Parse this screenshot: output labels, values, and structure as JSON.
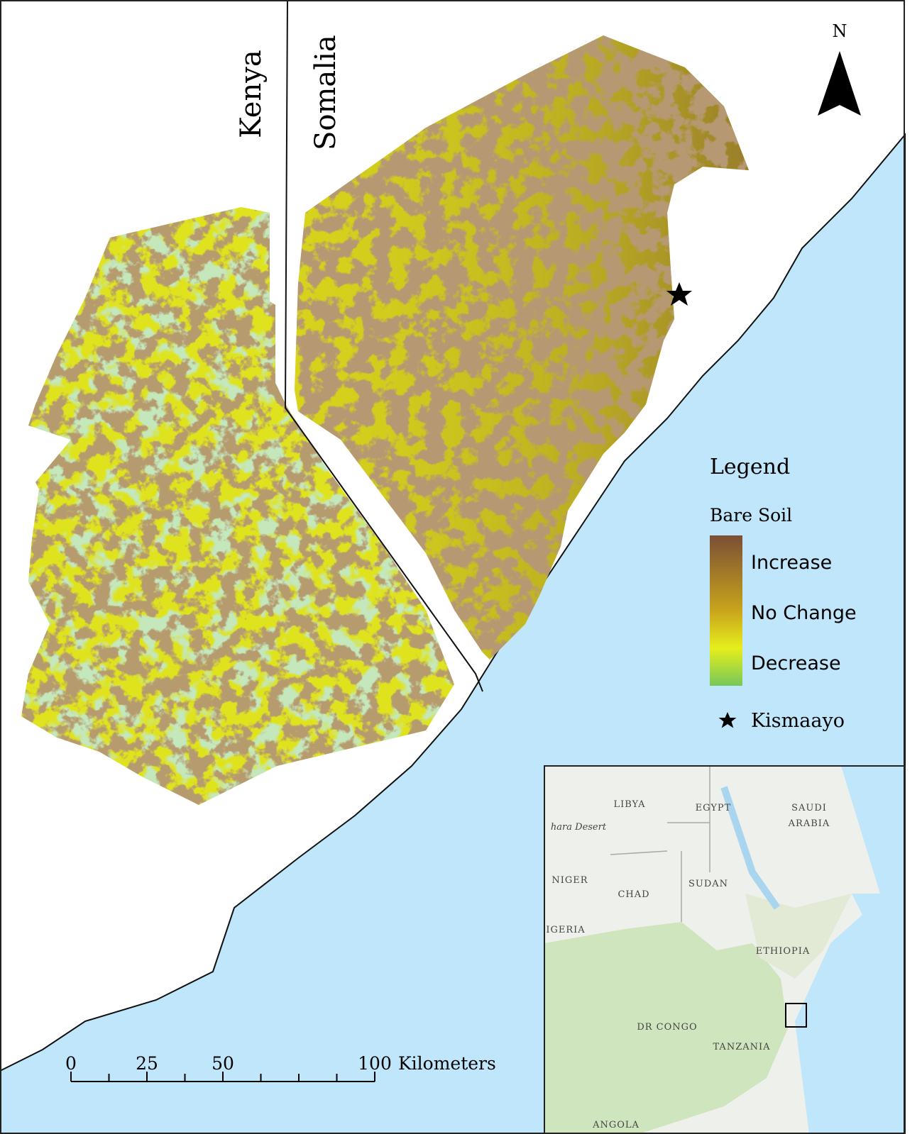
{
  "map": {
    "countries": [
      "Kenya",
      "Somalia"
    ],
    "north": "N",
    "legend": {
      "title": "Legend",
      "subtitle": "Bare Soil",
      "classes": [
        "Increase",
        "No Change",
        "Decrease"
      ],
      "point": "Kismaayo"
    },
    "scale_bar": {
      "ticks": [
        0,
        25,
        50,
        100
      ],
      "unit": "Kilometers"
    },
    "inset": {
      "labels": [
        "LIBYA",
        "EGYPT",
        "SAUDI",
        "ARABIA",
        "hara Desert",
        "NIGER",
        "CHAD",
        "SUDAN",
        "IGERIA",
        "ETHIOPIA",
        "DR CONGO",
        "TANZANIA",
        "ANGOLA"
      ]
    }
  }
}
